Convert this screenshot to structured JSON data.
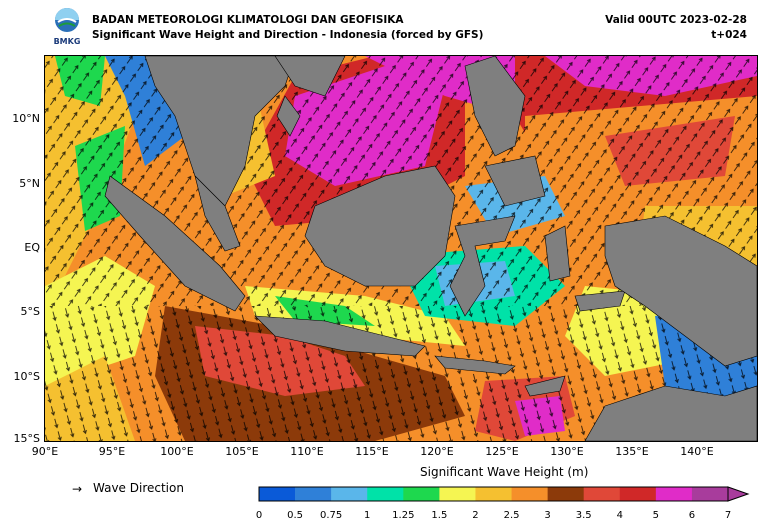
{
  "header": {
    "agency": "BADAN METEOROLOGI KLIMATOLOGI DAN GEOFISIKA",
    "product": "Significant Wave Height and Direction - Indonesia (forced by GFS)",
    "valid": "Valid 00UTC 2023-02-28",
    "lead": "t+024",
    "logo_text": "BMKG"
  },
  "map": {
    "lat_labels": [
      "10°N",
      "5°N",
      "EQ",
      "5°S",
      "10°S",
      "15°S"
    ],
    "lon_labels": [
      "90°E",
      "95°E",
      "100°E",
      "105°E",
      "110°E",
      "115°E",
      "120°E",
      "125°E",
      "130°E",
      "135°E",
      "140°E"
    ],
    "land_color": "#7f7f7f"
  },
  "legend": {
    "arrow_label": "Wave Direction",
    "arrow_glyph": "→"
  },
  "colorbar": {
    "title": "Significant Wave Height (m)",
    "ticks": [
      "0",
      "0.5",
      "0.75",
      "1",
      "1.25",
      "1.5",
      "2",
      "2.5",
      "3",
      "3.5",
      "4",
      "5",
      "6",
      "7"
    ],
    "colors": [
      "#0a5ad8",
      "#2f80d8",
      "#5ab6ea",
      "#00e2a8",
      "#1ed84e",
      "#f5f552",
      "#f5c030",
      "#f58f2a",
      "#8c3a0a",
      "#e04838",
      "#d02828",
      "#e02cc8",
      "#a83c9c"
    ]
  }
}
